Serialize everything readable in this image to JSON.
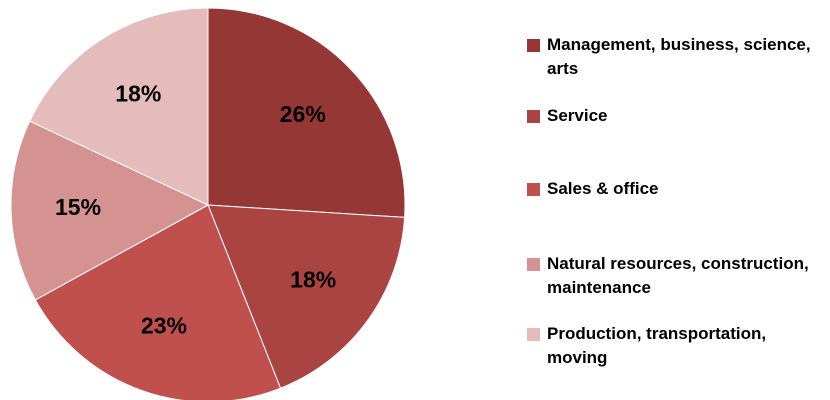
{
  "chart_data": {
    "type": "pie",
    "categories": [
      "Management, business, science, arts",
      "Service",
      "Sales & office",
      "Natural resources, construction, maintenance",
      "Production, transportation, moving"
    ],
    "values": [
      26,
      18,
      23,
      15,
      18
    ],
    "value_labels": [
      "26%",
      "18%",
      "23%",
      "15%",
      "18%"
    ],
    "colors": [
      "#953735",
      "#aa4442",
      "#c0504d",
      "#d49290",
      "#e3bcbb"
    ],
    "legend": "right"
  }
}
